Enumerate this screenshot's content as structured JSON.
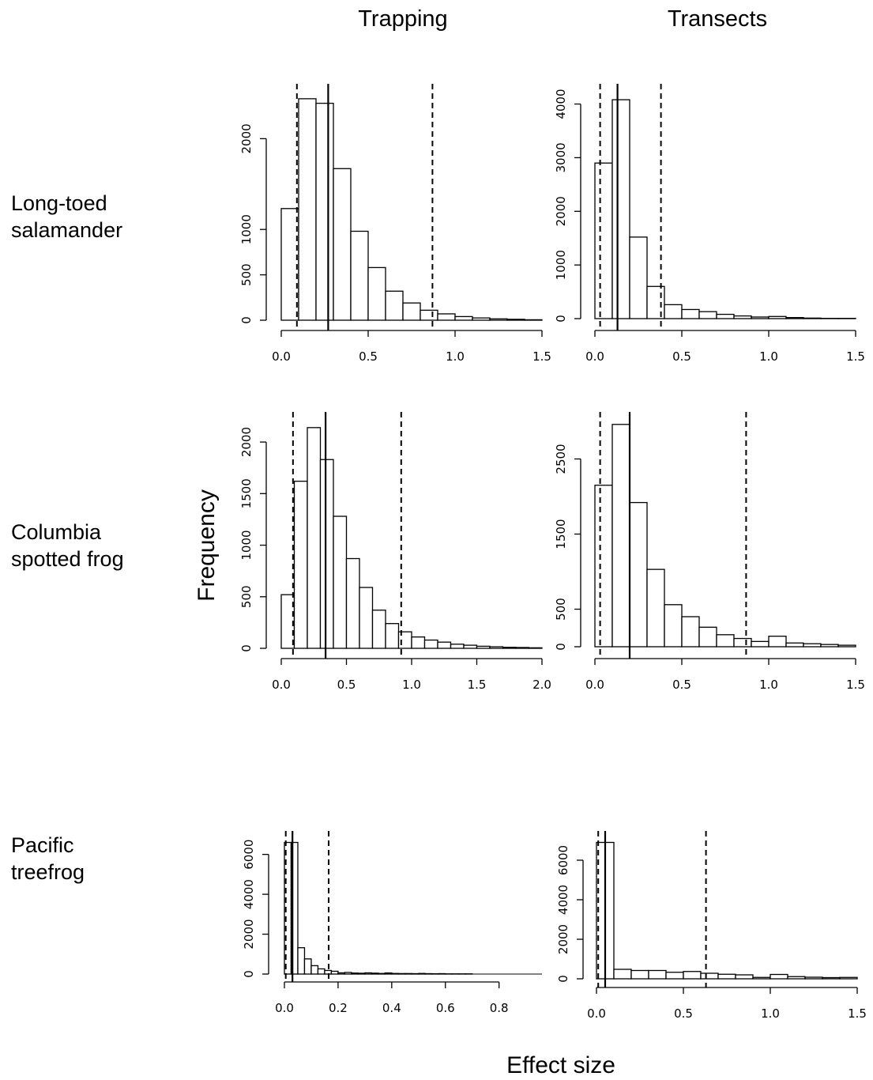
{
  "column_titles": [
    "Trapping",
    "Transects"
  ],
  "row_labels": [
    [
      "Long-toed",
      "salamander"
    ],
    [
      "Columbia",
      "spotted frog"
    ],
    [
      "Pacific",
      "treefrog"
    ]
  ],
  "ylabel": "Frequency",
  "xlabel": "Effect size",
  "chart_data": [
    {
      "type": "bar",
      "row": "Long-toed salamander",
      "column": "Trapping",
      "bin_width": 0.1,
      "bin_start": 0.0,
      "values": [
        1230,
        2440,
        2390,
        1670,
        980,
        580,
        320,
        190,
        110,
        70,
        40,
        25,
        15,
        10,
        5
      ],
      "xlim": [
        0,
        1.5
      ],
      "ylim": [
        0,
        2500
      ],
      "xticks": [
        "0.0",
        "0.5",
        "1.0",
        "1.5"
      ],
      "yticks": [
        "0",
        "500",
        "1000",
        "2000"
      ],
      "ytick_values": [
        0,
        500,
        1000,
        2000
      ],
      "xtick_values": [
        0,
        0.5,
        1.0,
        1.5
      ],
      "median": 0.27,
      "ci_lower": 0.09,
      "ci_upper": 0.87
    },
    {
      "type": "bar",
      "row": "Long-toed salamander",
      "column": "Transects",
      "bin_width": 0.1,
      "bin_start": 0.0,
      "values": [
        2900,
        4080,
        1520,
        600,
        260,
        170,
        130,
        80,
        50,
        30,
        40,
        20,
        10,
        5,
        5
      ],
      "xlim": [
        0,
        1.5
      ],
      "ylim": [
        0,
        4200
      ],
      "xticks": [
        "0.0",
        "0.5",
        "1.0",
        "1.5"
      ],
      "yticks": [
        "0",
        "1000",
        "2000",
        "3000",
        "4000"
      ],
      "ytick_values": [
        0,
        1000,
        2000,
        3000,
        4000
      ],
      "xtick_values": [
        0,
        0.5,
        1.0,
        1.5
      ],
      "median": 0.13,
      "ci_lower": 0.03,
      "ci_upper": 0.38
    },
    {
      "type": "bar",
      "row": "Columbia spotted frog",
      "column": "Trapping",
      "bin_width": 0.1,
      "bin_start": 0.0,
      "values": [
        520,
        1620,
        2140,
        1830,
        1280,
        870,
        590,
        370,
        240,
        160,
        110,
        80,
        60,
        40,
        30,
        20,
        15,
        10,
        8,
        5
      ],
      "xlim": [
        0,
        2.0
      ],
      "ylim": [
        0,
        2200
      ],
      "xticks": [
        "0.0",
        "0.5",
        "1.0",
        "1.5",
        "2.0"
      ],
      "yticks": [
        "0",
        "500",
        "1000",
        "1500",
        "2000"
      ],
      "ytick_values": [
        0,
        500,
        1000,
        1500,
        2000
      ],
      "xtick_values": [
        0,
        0.5,
        1.0,
        1.5,
        2.0
      ],
      "median": 0.34,
      "ci_lower": 0.09,
      "ci_upper": 0.92
    },
    {
      "type": "bar",
      "row": "Columbia spotted frog",
      "column": "Transects",
      "bin_width": 0.1,
      "bin_start": 0.0,
      "values": [
        2150,
        2960,
        1920,
        1030,
        560,
        400,
        260,
        160,
        110,
        70,
        140,
        50,
        40,
        30,
        20
      ],
      "xlim": [
        0,
        1.5
      ],
      "ylim": [
        0,
        3000
      ],
      "xticks": [
        "0.0",
        "0.5",
        "1.0",
        "1.5"
      ],
      "yticks": [
        "0",
        "500",
        "1500",
        "2500"
      ],
      "ytick_values": [
        0,
        500,
        1500,
        2500
      ],
      "xtick_values": [
        0,
        0.5,
        1.0,
        1.5
      ],
      "median": 0.2,
      "ci_lower": 0.03,
      "ci_upper": 0.87
    },
    {
      "type": "bar",
      "row": "Pacific treefrog",
      "column": "Trapping",
      "bin_width": 0.025,
      "bin_start": 0.0,
      "values": [
        6600,
        6600,
        1320,
        760,
        420,
        260,
        180,
        140,
        60,
        80,
        50,
        40,
        60,
        45,
        30,
        55,
        30,
        25,
        25,
        20,
        30,
        20,
        15,
        20,
        10,
        10,
        10,
        10
      ],
      "xlim": [
        0,
        0.96
      ],
      "ylim": [
        0,
        6700
      ],
      "xticks": [
        "0.0",
        "0.2",
        "0.4",
        "0.6",
        "0.8"
      ],
      "yticks": [
        "0",
        "2000",
        "4000",
        "6000"
      ],
      "ytick_values": [
        0,
        2000,
        4000,
        6000
      ],
      "xtick_values": [
        0,
        0.2,
        0.4,
        0.6,
        0.8
      ],
      "median": 0.03,
      "ci_lower": 0.005,
      "ci_upper": 0.165
    },
    {
      "type": "bar",
      "row": "Pacific treefrog",
      "column": "Transects",
      "bin_width": 0.1,
      "bin_start": 0.0,
      "values": [
        6900,
        480,
        420,
        420,
        330,
        370,
        280,
        230,
        200,
        70,
        220,
        110,
        80,
        60,
        70
      ],
      "xlim": [
        0,
        1.5
      ],
      "ylim": [
        0,
        7000
      ],
      "xticks": [
        "0.0",
        "0.5",
        "1.0",
        "1.5"
      ],
      "yticks": [
        "0",
        "2000",
        "4000",
        "6000"
      ],
      "ytick_values": [
        0,
        2000,
        4000,
        6000
      ],
      "xtick_values": [
        0,
        0.5,
        1.0,
        1.5
      ],
      "median": 0.05,
      "ci_lower": 0.01,
      "ci_upper": 0.63
    }
  ]
}
